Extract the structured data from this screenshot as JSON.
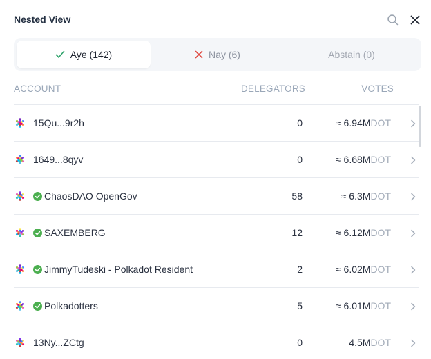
{
  "header": {
    "title": "Nested View"
  },
  "tabs": [
    {
      "label": "Aye (142)",
      "icon": "check-icon",
      "active": true,
      "color": "#2fa36b"
    },
    {
      "label": "Nay (6)",
      "icon": "cross-icon",
      "active": false,
      "color": "#e04a43"
    },
    {
      "label": "Abstain (0)",
      "active": false
    }
  ],
  "table": {
    "headers": {
      "account": "ACCOUNT",
      "delegators": "DELEGATORS",
      "votes": "VOTES"
    },
    "rows": [
      {
        "name": "15Qu...9r2h",
        "verified": false,
        "delegators": "0",
        "votes": "≈ 6.94M",
        "unit": "DOT"
      },
      {
        "name": "1649...8qyv",
        "verified": false,
        "delegators": "0",
        "votes": "≈ 6.68M",
        "unit": "DOT"
      },
      {
        "name": "ChaosDAO OpenGov",
        "verified": true,
        "delegators": "58",
        "votes": "≈ 6.3M",
        "unit": "DOT"
      },
      {
        "name": "SAXEMBERG",
        "verified": true,
        "delegators": "12",
        "votes": "≈ 6.12M",
        "unit": "DOT"
      },
      {
        "name": "JimmyTudeski - Polkadot Resident",
        "verified": true,
        "delegators": "2",
        "votes": "≈ 6.02M",
        "unit": "DOT"
      },
      {
        "name": "Polkadotters",
        "verified": true,
        "delegators": "5",
        "votes": "≈ 6.01M",
        "unit": "DOT"
      },
      {
        "name": "13Ny...ZCtg",
        "verified": false,
        "delegators": "0",
        "votes": "4.5M",
        "unit": "DOT"
      }
    ]
  },
  "colors": {
    "verified": "#4caf50",
    "muted": "#9aa7b8",
    "divider": "#e7eaef"
  }
}
